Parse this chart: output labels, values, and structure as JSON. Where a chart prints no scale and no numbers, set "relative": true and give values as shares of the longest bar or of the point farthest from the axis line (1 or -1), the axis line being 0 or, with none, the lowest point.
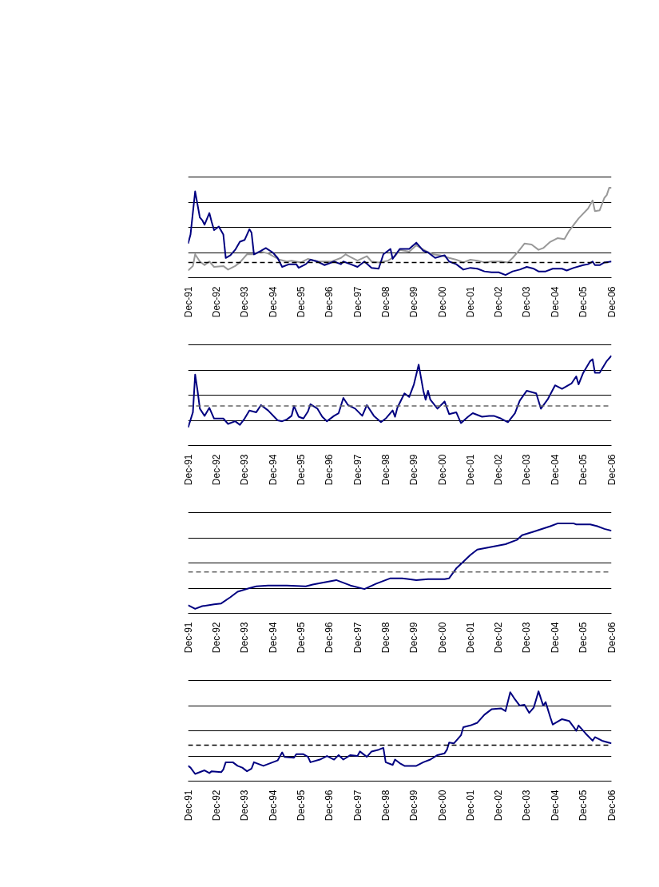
{
  "chart_data": [
    {
      "type": "line",
      "relative": true,
      "grid": "y",
      "tick_labels": "x",
      "line_style": "solid",
      "xlim": [
        "1991-12",
        "2006-12"
      ],
      "xticks": [
        {
          "value": "1991-12",
          "label": "Dec-91"
        },
        {
          "value": "1992-12",
          "label": "Dec-92"
        },
        {
          "value": "1993-12",
          "label": "Dec-93"
        },
        {
          "value": "1994-12",
          "label": "Dec-94"
        },
        {
          "value": "1995-12",
          "label": "Dec-95"
        },
        {
          "value": "1996-12",
          "label": "Dec-96"
        },
        {
          "value": "1997-12",
          "label": "Dec-97"
        },
        {
          "value": "1998-12",
          "label": "Dec-98"
        },
        {
          "value": "1999-12",
          "label": "Dec-99"
        },
        {
          "value": "2000-12",
          "label": "Dec-00"
        },
        {
          "value": "2001-12",
          "label": "Dec-01"
        },
        {
          "value": "2002-12",
          "label": "Dec-02"
        },
        {
          "value": "2003-12",
          "label": "Dec-03"
        },
        {
          "value": "2004-12",
          "label": "Dec-04"
        },
        {
          "value": "2005-12",
          "label": "Dec-05"
        },
        {
          "value": "2006-12",
          "label": "Dec-06"
        }
      ],
      "series": [
        {
          "color": "#999999",
          "x": [
            "1991-12",
            "1992-02",
            "1992-03",
            "1992-05",
            "1992-07",
            "1992-09",
            "1992-11",
            "1993-03",
            "1993-05",
            "1993-08",
            "1993-10",
            "1994-01",
            "1994-04",
            "1994-07",
            "1994-10",
            "1995-03",
            "1995-06",
            "1995-08",
            "1995-12",
            "1996-03",
            "1996-07",
            "1996-09",
            "1997-01",
            "1997-05",
            "1997-07",
            "1997-09",
            "1997-12",
            "1998-04",
            "1998-06",
            "1998-09",
            "1999-01",
            "1999-04",
            "1999-06",
            "1999-10",
            "2000-01",
            "2000-05",
            "2000-08",
            "2000-11",
            "2001-03",
            "2001-06",
            "2001-09",
            "2001-12",
            "2002-03",
            "2002-06",
            "2002-09",
            "2003-01",
            "2003-04",
            "2003-06",
            "2003-08",
            "2003-11",
            "2004-02",
            "2004-05",
            "2004-07",
            "2004-10",
            "2005-01",
            "2005-04",
            "2005-06",
            "2005-08",
            "2005-10",
            "2006-02",
            "2006-04",
            "2006-05",
            "2006-07",
            "2006-09",
            "2006-10",
            "2006-11",
            "2006-12"
          ],
          "values": [
            0.08,
            0.13,
            0.26,
            0.18,
            0.14,
            0.18,
            0.12,
            0.13,
            0.09,
            0.13,
            0.17,
            0.26,
            0.26,
            0.29,
            0.27,
            0.2,
            0.18,
            0.19,
            0.17,
            0.21,
            0.18,
            0.18,
            0.18,
            0.22,
            0.26,
            0.23,
            0.19,
            0.24,
            0.18,
            0.17,
            0.19,
            0.24,
            0.31,
            0.29,
            0.36,
            0.3,
            0.26,
            0.25,
            0.22,
            0.2,
            0.17,
            0.2,
            0.19,
            0.17,
            0.18,
            0.18,
            0.17,
            0.22,
            0.28,
            0.38,
            0.37,
            0.31,
            0.33,
            0.4,
            0.44,
            0.43,
            0.52,
            0.59,
            0.66,
            0.77,
            0.86,
            0.74,
            0.75,
            0.89,
            0.92,
            1,
            1
          ]
        },
        {
          "color": "#000080",
          "x": [
            "1991-12",
            "1992-01",
            "1992-03",
            "1992-05",
            "1992-06",
            "1992-07",
            "1992-09",
            "1992-10",
            "1992-11",
            "1993-01",
            "1993-03",
            "1993-04",
            "1993-06",
            "1993-08",
            "1993-10",
            "1993-12",
            "1994-02",
            "1994-03",
            "1994-04",
            "1994-07",
            "1994-09",
            "1994-12",
            "1995-02",
            "1995-04",
            "1995-07",
            "1995-10",
            "1995-11",
            "1996-02",
            "1996-04",
            "1996-07",
            "1996-10",
            "1997-02",
            "1997-05",
            "1997-06",
            "1997-09",
            "1997-12",
            "1998-03",
            "1998-06",
            "1998-09",
            "1998-11",
            "1999-02",
            "1999-03",
            "1999-06",
            "1999-10",
            "2000-01",
            "2000-04",
            "2000-06",
            "2000-09",
            "2001-01",
            "2001-03",
            "2001-06",
            "2001-09",
            "2001-12",
            "2002-03",
            "2002-06",
            "2002-09",
            "2002-12",
            "2003-03",
            "2003-06",
            "2003-09",
            "2003-12",
            "2004-03",
            "2004-05",
            "2004-08",
            "2004-11",
            "2005-03",
            "2005-05",
            "2005-08",
            "2005-12",
            "2006-02",
            "2006-04",
            "2006-05",
            "2006-07",
            "2006-09",
            "2006-12"
          ],
          "values": [
            0.38,
            0.48,
            0.96,
            0.67,
            0.64,
            0.59,
            0.72,
            0.62,
            0.53,
            0.57,
            0.48,
            0.22,
            0.25,
            0.31,
            0.4,
            0.42,
            0.54,
            0.5,
            0.26,
            0.3,
            0.33,
            0.28,
            0.22,
            0.12,
            0.15,
            0.15,
            0.11,
            0.15,
            0.2,
            0.18,
            0.14,
            0.18,
            0.15,
            0.18,
            0.15,
            0.12,
            0.18,
            0.11,
            0.1,
            0.26,
            0.32,
            0.21,
            0.32,
            0.32,
            0.39,
            0.3,
            0.28,
            0.22,
            0.25,
            0.18,
            0.15,
            0.09,
            0.11,
            0.1,
            0.07,
            0.06,
            0.06,
            0.03,
            0.07,
            0.09,
            0.12,
            0.1,
            0.07,
            0.07,
            0.1,
            0.1,
            0.08,
            0.11,
            0.14,
            0.15,
            0.18,
            0.14,
            0.14,
            0.17,
            0.18
          ]
        }
      ],
      "ref_lines": [
        {
          "axis": "y",
          "value": 0.17,
          "color": "#000000",
          "line_style": "dashed"
        }
      ]
    },
    {
      "type": "line",
      "relative": true,
      "grid": "y",
      "tick_labels": "x",
      "line_style": "solid",
      "xlim": [
        "1991-12",
        "2006-12"
      ],
      "xticks": [
        {
          "value": "1991-12",
          "label": "Dec-91"
        },
        {
          "value": "1992-12",
          "label": "Dec-92"
        },
        {
          "value": "1993-12",
          "label": "Dec-93"
        },
        {
          "value": "1994-12",
          "label": "Dec-94"
        },
        {
          "value": "1995-12",
          "label": "Dec-95"
        },
        {
          "value": "1996-12",
          "label": "Dec-96"
        },
        {
          "value": "1997-12",
          "label": "Dec-97"
        },
        {
          "value": "1998-12",
          "label": "Dec-98"
        },
        {
          "value": "1999-12",
          "label": "Dec-99"
        },
        {
          "value": "2000-12",
          "label": "Dec-00"
        },
        {
          "value": "2001-12",
          "label": "Dec-01"
        },
        {
          "value": "2002-12",
          "label": "Dec-02"
        },
        {
          "value": "2003-12",
          "label": "Dec-03"
        },
        {
          "value": "2004-12",
          "label": "Dec-04"
        },
        {
          "value": "2005-12",
          "label": "Dec-05"
        },
        {
          "value": "2006-12",
          "label": "Dec-06"
        }
      ],
      "series": [
        {
          "color": "#000080",
          "x": [
            "1991-12",
            "1992-02",
            "1992-03",
            "1992-04",
            "1992-05",
            "1992-07",
            "1992-09",
            "1992-11",
            "1993-03",
            "1993-05",
            "1993-08",
            "1993-10",
            "1993-12",
            "1994-02",
            "1994-05",
            "1994-07",
            "1994-10",
            "1995-02",
            "1995-04",
            "1995-06",
            "1995-08",
            "1995-09",
            "1995-11",
            "1996-01",
            "1996-03",
            "1996-04",
            "1996-07",
            "1996-09",
            "1996-11",
            "1997-02",
            "1997-04",
            "1997-06",
            "1997-08",
            "1997-11",
            "1998-02",
            "1998-04",
            "1998-07",
            "1998-10",
            "1998-12",
            "1999-03",
            "1999-04",
            "1999-05",
            "1999-08",
            "1999-10",
            "1999-12",
            "2000-02",
            "2000-04",
            "2000-05",
            "2000-06",
            "2000-07",
            "2000-10",
            "2001-01",
            "2001-03",
            "2001-06",
            "2001-08",
            "2001-11",
            "2002-01",
            "2002-05",
            "2002-08",
            "2002-10",
            "2003-01",
            "2003-04",
            "2003-07",
            "2003-09",
            "2003-12",
            "2004-04",
            "2004-06",
            "2004-09",
            "2004-12",
            "2005-03",
            "2005-07",
            "2005-09",
            "2005-10",
            "2005-12",
            "2006-03",
            "2006-04",
            "2006-05",
            "2006-07",
            "2006-10",
            "2006-12"
          ],
          "values": [
            0.2,
            0.37,
            0.79,
            0.61,
            0.41,
            0.33,
            0.42,
            0.3,
            0.3,
            0.24,
            0.27,
            0.23,
            0.3,
            0.39,
            0.37,
            0.45,
            0.39,
            0.28,
            0.27,
            0.29,
            0.33,
            0.44,
            0.32,
            0.3,
            0.38,
            0.46,
            0.41,
            0.32,
            0.27,
            0.33,
            0.36,
            0.53,
            0.45,
            0.41,
            0.33,
            0.45,
            0.33,
            0.26,
            0.3,
            0.39,
            0.32,
            0.42,
            0.58,
            0.54,
            0.68,
            0.9,
            0.61,
            0.51,
            0.61,
            0.51,
            0.41,
            0.49,
            0.35,
            0.37,
            0.25,
            0.32,
            0.36,
            0.32,
            0.33,
            0.33,
            0.3,
            0.26,
            0.36,
            0.5,
            0.61,
            0.58,
            0.41,
            0.52,
            0.67,
            0.63,
            0.69,
            0.77,
            0.68,
            0.81,
            0.94,
            0.96,
            0.81,
            0.81,
            0.94,
            1
          ]
        }
      ],
      "ref_lines": [
        {
          "axis": "y",
          "value": 0.44,
          "color": "#666666",
          "line_style": "dashed"
        }
      ]
    },
    {
      "type": "line",
      "relative": true,
      "grid": "y",
      "tick_labels": "x",
      "line_style": "solid",
      "xlim": [
        "1991-12",
        "2006-12"
      ],
      "xticks": [
        {
          "value": "1991-12",
          "label": "Dec-91"
        },
        {
          "value": "1992-12",
          "label": "Dec-92"
        },
        {
          "value": "1993-12",
          "label": "Dec-93"
        },
        {
          "value": "1994-12",
          "label": "Dec-94"
        },
        {
          "value": "1995-12",
          "label": "Dec-95"
        },
        {
          "value": "1996-12",
          "label": "Dec-96"
        },
        {
          "value": "1997-12",
          "label": "Dec-97"
        },
        {
          "value": "1998-12",
          "label": "Dec-98"
        },
        {
          "value": "1999-12",
          "label": "Dec-99"
        },
        {
          "value": "2000-12",
          "label": "Dec-00"
        },
        {
          "value": "2001-12",
          "label": "Dec-01"
        },
        {
          "value": "2002-12",
          "label": "Dec-02"
        },
        {
          "value": "2003-12",
          "label": "Dec-03"
        },
        {
          "value": "2004-12",
          "label": "Dec-04"
        },
        {
          "value": "2005-12",
          "label": "Dec-05"
        },
        {
          "value": "2006-12",
          "label": "Dec-06"
        }
      ],
      "series": [
        {
          "color": "#000080",
          "x": [
            "1991-12",
            "1992-03",
            "1992-06",
            "1992-11",
            "1993-02",
            "1993-06",
            "1993-09",
            "1994-02",
            "1994-05",
            "1994-10",
            "1995-06",
            "1996-02",
            "1996-05",
            "1996-09",
            "1997-03",
            "1997-09",
            "1998-03",
            "1998-08",
            "1999-02",
            "1999-07",
            "2000-01",
            "2000-06",
            "2001-01",
            "2001-03",
            "2001-06",
            "2001-08",
            "2001-12",
            "2002-03",
            "2002-07",
            "2003-03",
            "2003-08",
            "2003-10",
            "2004-03",
            "2004-10",
            "2005-01",
            "2005-08",
            "2005-09",
            "2006-03",
            "2006-06",
            "2006-09",
            "2006-12"
          ],
          "values": [
            0.09,
            0.05,
            0.08,
            0.1,
            0.11,
            0.18,
            0.24,
            0.28,
            0.3,
            0.31,
            0.31,
            0.3,
            0.32,
            0.34,
            0.37,
            0.31,
            0.27,
            0.33,
            0.39,
            0.39,
            0.37,
            0.38,
            0.38,
            0.39,
            0.5,
            0.55,
            0.65,
            0.71,
            0.73,
            0.77,
            0.82,
            0.87,
            0.91,
            0.97,
            1.0,
            1.0,
            0.99,
            0.99,
            0.97,
            0.94,
            0.92
          ]
        }
      ],
      "ref_lines": [
        {
          "axis": "y",
          "value": 0.46,
          "color": "#666666",
          "line_style": "dashed"
        }
      ]
    },
    {
      "type": "line",
      "relative": true,
      "grid": "y",
      "tick_labels": "x",
      "line_style": "solid",
      "xlim": [
        "1991-12",
        "2006-12"
      ],
      "xticks": [
        {
          "value": "1991-12",
          "label": "Dec-91"
        },
        {
          "value": "1992-12",
          "label": "Dec-92"
        },
        {
          "value": "1993-12",
          "label": "Dec-93"
        },
        {
          "value": "1994-12",
          "label": "Dec-94"
        },
        {
          "value": "1995-12",
          "label": "Dec-95"
        },
        {
          "value": "1996-12",
          "label": "Dec-96"
        },
        {
          "value": "1997-12",
          "label": "Dec-97"
        },
        {
          "value": "1998-12",
          "label": "Dec-98"
        },
        {
          "value": "1999-12",
          "label": "Dec-99"
        },
        {
          "value": "2000-12",
          "label": "Dec-00"
        },
        {
          "value": "2001-12",
          "label": "Dec-01"
        },
        {
          "value": "2002-12",
          "label": "Dec-02"
        },
        {
          "value": "2003-12",
          "label": "Dec-03"
        },
        {
          "value": "2004-12",
          "label": "Dec-04"
        },
        {
          "value": "2005-12",
          "label": "Dec-05"
        },
        {
          "value": "2006-12",
          "label": "Dec-06"
        }
      ],
      "series": [
        {
          "color": "#000080",
          "x": [
            "1991-12",
            "1992-01",
            "1992-03",
            "1992-05",
            "1992-07",
            "1992-09",
            "1992-10",
            "1993-02",
            "1993-03",
            "1993-04",
            "1993-07",
            "1993-09",
            "1993-11",
            "1994-01",
            "1994-03",
            "1994-04",
            "1994-06",
            "1994-08",
            "1994-10",
            "1995-02",
            "1995-04",
            "1995-05",
            "1995-09",
            "1995-10",
            "1996-01",
            "1996-03",
            "1996-04",
            "1996-08",
            "1996-11",
            "1997-02",
            "1997-04",
            "1997-06",
            "1997-09",
            "1997-12",
            "1998-01",
            "1998-04",
            "1998-06",
            "1998-09",
            "1998-11",
            "1998-12",
            "1999-03",
            "1999-04",
            "1999-06",
            "1999-08",
            "2000-01",
            "2000-04",
            "2000-07",
            "2000-10",
            "2001-01",
            "2001-02",
            "2001-03",
            "2001-05",
            "2001-08",
            "2001-09",
            "2001-12",
            "2002-03",
            "2002-06",
            "2002-09",
            "2003-01",
            "2003-03",
            "2003-05",
            "2003-07",
            "2003-09",
            "2003-11",
            "2004-01",
            "2004-03",
            "2004-05",
            "2004-07",
            "2004-08",
            "2004-10",
            "2004-11",
            "2005-03",
            "2005-06",
            "2005-08",
            "2005-09",
            "2005-10",
            "2006-01",
            "2006-04",
            "2006-05",
            "2006-08",
            "2006-12"
          ],
          "values": [
            0.17,
            0.15,
            0.08,
            0.1,
            0.12,
            0.09,
            0.11,
            0.1,
            0.13,
            0.21,
            0.21,
            0.17,
            0.15,
            0.11,
            0.14,
            0.21,
            0.19,
            0.17,
            0.19,
            0.23,
            0.32,
            0.27,
            0.26,
            0.3,
            0.3,
            0.27,
            0.21,
            0.24,
            0.28,
            0.24,
            0.29,
            0.24,
            0.29,
            0.28,
            0.33,
            0.27,
            0.33,
            0.35,
            0.37,
            0.21,
            0.18,
            0.24,
            0.2,
            0.17,
            0.17,
            0.21,
            0.24,
            0.29,
            0.31,
            0.35,
            0.43,
            0.42,
            0.51,
            0.6,
            0.62,
            0.65,
            0.74,
            0.8,
            0.81,
            0.78,
            0.99,
            0.91,
            0.84,
            0.85,
            0.76,
            0.82,
            1.0,
            0.84,
            0.88,
            0.71,
            0.63,
            0.69,
            0.67,
            0.6,
            0.56,
            0.62,
            0.53,
            0.45,
            0.49,
            0.45,
            0.42
          ]
        }
      ],
      "ref_lines": [
        {
          "axis": "y",
          "value": 0.4,
          "color": "#000000",
          "line_style": "dashed"
        }
      ]
    }
  ]
}
